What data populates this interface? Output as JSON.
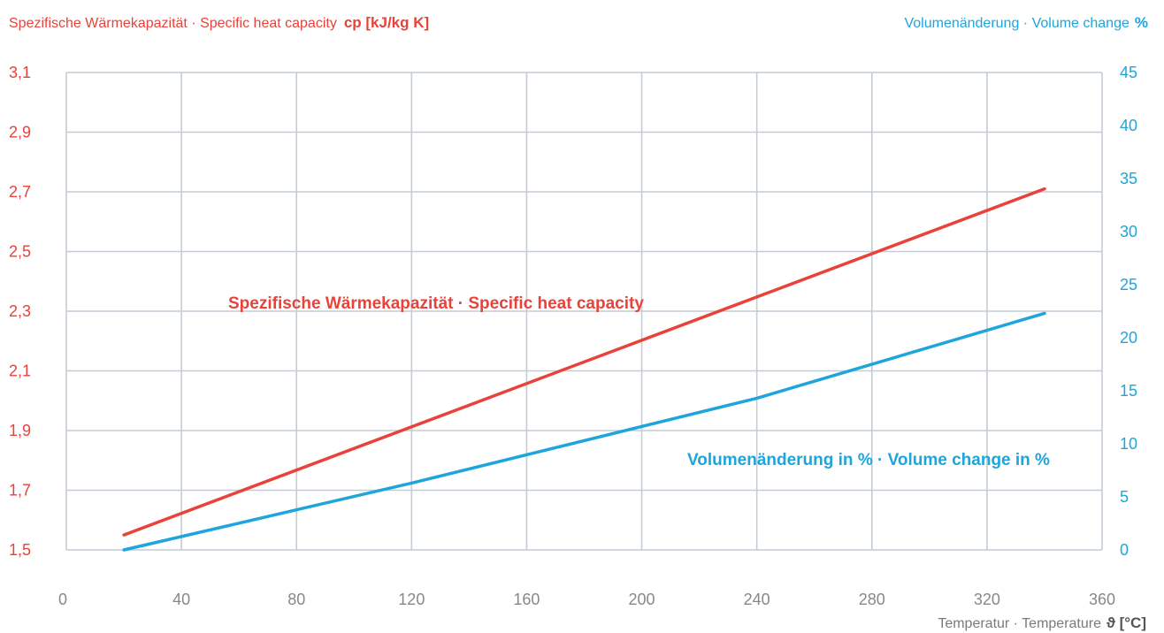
{
  "chart_data": {
    "type": "line",
    "y_left": {
      "title": "Spezifische Wärmekapazität · Specific heat capacity",
      "unit": "cp [kJ/kg K]",
      "ylim": [
        1.5,
        3.1
      ],
      "ticks": [
        "1,5",
        "1,7",
        "1,9",
        "2,1",
        "2,3",
        "2,5",
        "2,7",
        "2,9",
        "3,1"
      ],
      "color": "#e8423a"
    },
    "y_right": {
      "title": "Volumenänderung · Volume change",
      "unit": "%",
      "ylim": [
        0,
        45
      ],
      "ticks": [
        "0",
        "5",
        "10",
        "15",
        "20",
        "25",
        "30",
        "35",
        "40",
        "45"
      ],
      "color": "#1ea5dc"
    },
    "x_axis": {
      "title": "Temperatur · Temperature",
      "unit": "ϑ [°C]",
      "xlim": [
        0,
        360
      ],
      "ticks": [
        "0",
        "40",
        "80",
        "120",
        "160",
        "200",
        "240",
        "280",
        "320",
        "360"
      ]
    },
    "grid": true,
    "series": [
      {
        "name": "Spezifische Wärmekapazität · Specific heat capacity",
        "axis": "left",
        "color": "#e8423a",
        "x": [
          20,
          340
        ],
        "y": [
          1.55,
          2.71
        ]
      },
      {
        "name": "Volumenänderung in % · Volume change in %",
        "axis": "right",
        "color": "#1ea5dc",
        "x": [
          20,
          120,
          240,
          340
        ],
        "y": [
          0,
          6.3,
          14.3,
          22.3
        ]
      }
    ]
  }
}
